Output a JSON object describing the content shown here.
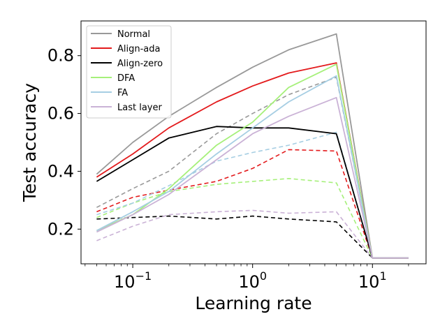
{
  "chart_data": {
    "type": "line",
    "xlabel": "Learning rate",
    "ylabel": "Test accuracy",
    "xscale": "log",
    "xlim": [
      0.037,
      28
    ],
    "ylim": [
      0.08,
      0.92
    ],
    "xticks": [
      {
        "value": 0.1,
        "base": "10",
        "exp": "−1"
      },
      {
        "value": 1,
        "base": "10",
        "exp": "0"
      },
      {
        "value": 10,
        "base": "10",
        "exp": "1"
      }
    ],
    "yticks": [
      {
        "value": 0.2,
        "label": "0.2"
      },
      {
        "value": 0.4,
        "label": "0.4"
      },
      {
        "value": 0.6,
        "label": "0.6"
      },
      {
        "value": 0.8,
        "label": "0.8"
      }
    ],
    "x": [
      0.05,
      0.1,
      0.2,
      0.5,
      1,
      2,
      5,
      10,
      20
    ],
    "legend_position": "upper-left",
    "series": [
      {
        "name": "Normal",
        "color": "#999999",
        "style": "solid",
        "in_legend": true,
        "values": [
          0.39,
          0.5,
          0.59,
          0.69,
          0.76,
          0.82,
          0.875,
          0.1,
          0.1
        ]
      },
      {
        "name": "Align-ada",
        "color": "#e31a1c",
        "style": "solid",
        "in_legend": true,
        "values": [
          0.38,
          0.46,
          0.55,
          0.64,
          0.695,
          0.74,
          0.775,
          0.1,
          0.1
        ]
      },
      {
        "name": "Align-zero",
        "color": "#000000",
        "style": "solid",
        "in_legend": true,
        "values": [
          0.365,
          0.44,
          0.515,
          0.555,
          0.55,
          0.55,
          0.53,
          0.1,
          0.1
        ]
      },
      {
        "name": "DFA",
        "color": "#a6f07a",
        "style": "solid",
        "in_legend": true,
        "values": [
          0.195,
          0.25,
          0.34,
          0.49,
          0.57,
          0.69,
          0.77,
          0.1,
          0.1
        ]
      },
      {
        "name": "FA",
        "color": "#a6cee3",
        "style": "solid",
        "in_legend": true,
        "values": [
          0.195,
          0.26,
          0.33,
          0.46,
          0.55,
          0.64,
          0.73,
          0.1,
          0.1
        ]
      },
      {
        "name": "Last layer",
        "color": "#cab2d6",
        "style": "solid",
        "in_legend": true,
        "values": [
          0.19,
          0.25,
          0.32,
          0.44,
          0.53,
          0.59,
          0.655,
          0.1,
          0.1
        ]
      },
      {
        "name": "Normal (dashed)",
        "color": "#999999",
        "style": "dashed",
        "in_legend": false,
        "values": [
          0.275,
          0.34,
          0.4,
          0.53,
          0.6,
          0.665,
          0.725,
          0.1,
          0.1
        ]
      },
      {
        "name": "Align-ada (dashed)",
        "color": "#e31a1c",
        "style": "dashed",
        "in_legend": false,
        "values": [
          0.26,
          0.31,
          0.335,
          0.365,
          0.41,
          0.475,
          0.47,
          0.1,
          0.1
        ]
      },
      {
        "name": "Align-zero (dashed)",
        "color": "#000000",
        "style": "dashed",
        "in_legend": false,
        "values": [
          0.235,
          0.24,
          0.245,
          0.235,
          0.245,
          0.235,
          0.225,
          0.1,
          0.1
        ]
      },
      {
        "name": "DFA (dashed)",
        "color": "#a6f07a",
        "style": "dashed",
        "in_legend": false,
        "values": [
          0.24,
          0.29,
          0.33,
          0.355,
          0.365,
          0.375,
          0.36,
          0.1,
          0.1
        ]
      },
      {
        "name": "FA (dashed)",
        "color": "#a6cee3",
        "style": "dashed",
        "in_legend": false,
        "values": [
          0.25,
          0.29,
          0.35,
          0.435,
          0.465,
          0.49,
          0.535,
          0.1,
          0.1
        ]
      },
      {
        "name": "Last layer (dashed)",
        "color": "#cab2d6",
        "style": "dashed",
        "in_legend": false,
        "values": [
          0.16,
          0.21,
          0.25,
          0.26,
          0.265,
          0.255,
          0.26,
          0.1,
          0.1
        ]
      }
    ]
  }
}
